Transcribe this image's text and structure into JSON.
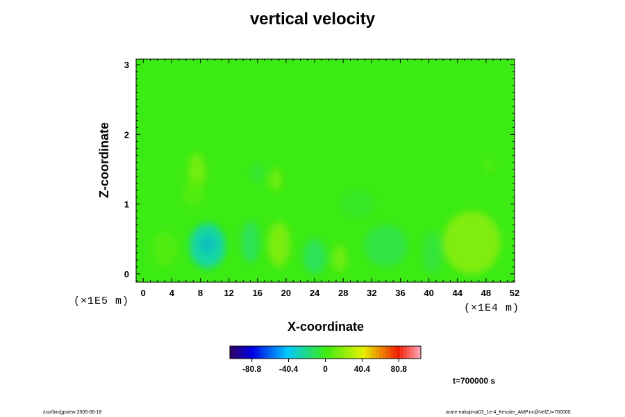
{
  "chart_data": {
    "type": "heatmap",
    "title": "vertical velocity",
    "xlabel": "X-coordinate",
    "ylabel": "Z-coordinate",
    "x_ticks": [
      0,
      4,
      8,
      12,
      16,
      20,
      24,
      28,
      32,
      36,
      40,
      44,
      48,
      52
    ],
    "y_ticks": [
      0,
      1,
      2,
      3
    ],
    "xlim": [
      -1,
      52
    ],
    "ylim": [
      -0.12,
      3.08
    ],
    "x_scale_label": "(×1E4 m)",
    "y_scale_label": "(×1E5 m)",
    "colorbar": {
      "tick_values": [
        -80.8,
        -40.4,
        0,
        40.4,
        80.8
      ],
      "tick_labels": [
        "-80.8",
        "-40.4",
        "0",
        "40.4",
        "80.8"
      ],
      "range": [
        -105,
        105
      ]
    },
    "background_value": 0,
    "blobs": [
      {
        "x": 9,
        "z": 0.42,
        "rx": 1.1,
        "rz": 0.12,
        "value": -70
      },
      {
        "x": 9,
        "z": 0.4,
        "rx": 2.5,
        "rz": 0.32,
        "value": -30
      },
      {
        "x": 3,
        "z": 0.35,
        "rx": 1.8,
        "rz": 0.25,
        "value": 6
      },
      {
        "x": 15,
        "z": 0.45,
        "rx": 1.3,
        "rz": 0.3,
        "value": -14
      },
      {
        "x": 19,
        "z": 0.42,
        "rx": 1.6,
        "rz": 0.32,
        "value": 18
      },
      {
        "x": 24,
        "z": 0.25,
        "rx": 1.6,
        "rz": 0.25,
        "value": -14
      },
      {
        "x": 27.5,
        "z": 0.22,
        "rx": 1.0,
        "rz": 0.2,
        "value": 14
      },
      {
        "x": 34,
        "z": 0.4,
        "rx": 3,
        "rz": 0.3,
        "value": -10
      },
      {
        "x": 40.5,
        "z": 0.3,
        "rx": 1.4,
        "rz": 0.3,
        "value": -8
      },
      {
        "x": 46,
        "z": 0.45,
        "rx": 4,
        "rz": 0.45,
        "value": 20
      },
      {
        "x": 7.5,
        "z": 1.45,
        "rx": 1.2,
        "rz": 0.28,
        "value": 16
      },
      {
        "x": 7,
        "z": 1.15,
        "rx": 1.5,
        "rz": 0.2,
        "value": 6
      },
      {
        "x": 18.5,
        "z": 1.35,
        "rx": 0.9,
        "rz": 0.16,
        "value": 14
      },
      {
        "x": 16,
        "z": 1.45,
        "rx": 1.0,
        "rz": 0.15,
        "value": -6
      },
      {
        "x": 48.5,
        "z": 1.55,
        "rx": 0.8,
        "rz": 0.1,
        "value": 6
      },
      {
        "x": 30,
        "z": 1.0,
        "rx": 2.5,
        "rz": 0.2,
        "value": -4
      }
    ],
    "time_label": "t=700000 s",
    "grid": false
  },
  "footer": {
    "left": "/usr/bin/gpview 2005-08-18",
    "right": "arare-nakajima03_1e-4_Kessler_AMP.nc@VelZ,t=700000"
  }
}
